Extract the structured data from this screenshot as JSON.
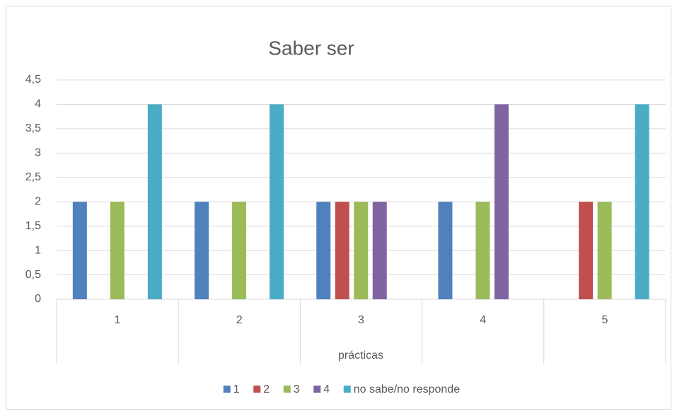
{
  "chart_data": {
    "type": "bar",
    "title": "Saber ser",
    "x_label": "prácticas",
    "categories": [
      "1",
      "2",
      "3",
      "4",
      "5"
    ],
    "series": [
      {
        "name": "1",
        "color": "#4f81bd",
        "values": [
          2,
          2,
          2,
          2,
          0
        ]
      },
      {
        "name": "2",
        "color": "#c0504d",
        "values": [
          0,
          0,
          2,
          0,
          2
        ]
      },
      {
        "name": "3",
        "color": "#9bbb59",
        "values": [
          2,
          2,
          2,
          2,
          2
        ]
      },
      {
        "name": "4",
        "color": "#8064a2",
        "values": [
          0,
          0,
          2,
          4,
          0
        ]
      },
      {
        "name": "no sabe/no responde",
        "color": "#4bacc6",
        "values": [
          4,
          4,
          0,
          0,
          4
        ]
      }
    ],
    "ylim": [
      0,
      4.5
    ],
    "yticks": [
      0,
      {
        "value": 0.5,
        "label": "0,5"
      },
      1,
      {
        "value": 1.5,
        "label": "1,5"
      },
      2,
      {
        "value": 2.5,
        "label": "2,5"
      },
      3,
      {
        "value": 3.5,
        "label": "3,5"
      },
      4,
      {
        "value": 4.5,
        "label": "4,5"
      }
    ],
    "grid": true,
    "legend": "bottom"
  }
}
